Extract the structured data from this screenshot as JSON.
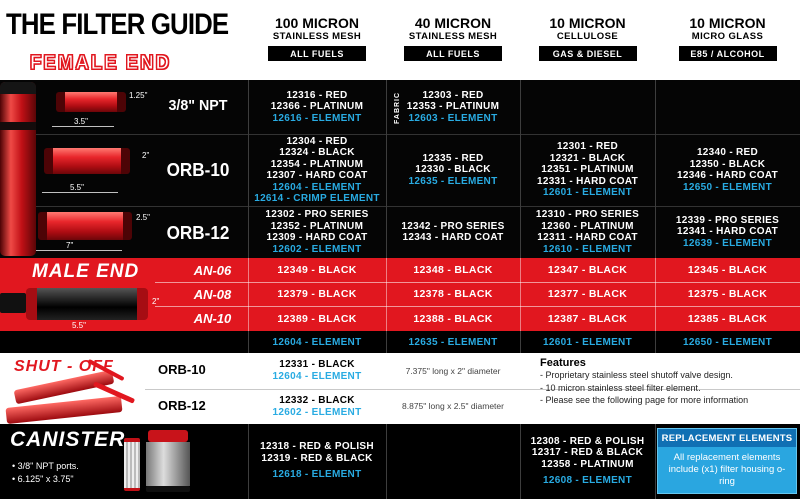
{
  "header": {
    "title": "THE FILTER GUIDE",
    "female_end_label": "FEMALE END",
    "columns": [
      {
        "line1": "100 MICRON",
        "line2": "STAINLESS MESH",
        "badge": "ALL FUELS"
      },
      {
        "line1": "40 MICRON",
        "line2": "STAINLESS MESH",
        "badge": "ALL FUELS"
      },
      {
        "line1": "10 MICRON",
        "line2": "CELLULOSE",
        "badge": "GAS & DIESEL"
      },
      {
        "line1": "10 MICRON",
        "line2": "MICRO GLASS",
        "badge": "E85 / ALCOHOL"
      }
    ]
  },
  "female_end": {
    "rows": [
      {
        "label": "3/8\" NPT",
        "dim_a": "1.25\"",
        "dim_b": "3.5\"",
        "cells": [
          {
            "lines": [
              {
                "t": "12316 - RED",
                "c": "w"
              },
              {
                "t": "12366 - PLATINUM",
                "c": "w"
              },
              {
                "t": "12616 - ELEMENT",
                "c": "b"
              }
            ]
          },
          {
            "tag": "FABRIC",
            "lines": [
              {
                "t": "12303 - RED",
                "c": "w"
              },
              {
                "t": "12353 - PLATINUM",
                "c": "w"
              },
              {
                "t": "12603 - ELEMENT",
                "c": "b"
              }
            ]
          },
          {
            "lines": []
          },
          {
            "lines": []
          }
        ]
      },
      {
        "label": "ORB-10",
        "dim_a": "2\"",
        "dim_b": "5.5\"",
        "cells": [
          {
            "lines": [
              {
                "t": "12304 - RED",
                "c": "w"
              },
              {
                "t": "12324 - BLACK",
                "c": "w"
              },
              {
                "t": "12354 - PLATINUM",
                "c": "w"
              },
              {
                "t": "12307 - HARD COAT",
                "c": "w"
              },
              {
                "t": "12604 - ELEMENT",
                "c": "b"
              },
              {
                "t": "12614 - CRIMP ELEMENT",
                "c": "b"
              }
            ]
          },
          {
            "lines": [
              {
                "t": "12335 - RED",
                "c": "w"
              },
              {
                "t": "12330 - BLACK",
                "c": "w"
              },
              {
                "t": "12635 - ELEMENT",
                "c": "b"
              }
            ]
          },
          {
            "lines": [
              {
                "t": "12301 - RED",
                "c": "w"
              },
              {
                "t": "12321 - BLACK",
                "c": "w"
              },
              {
                "t": "12351 - PLATINUM",
                "c": "w"
              },
              {
                "t": "12331 - HARD COAT",
                "c": "w"
              },
              {
                "t": "12601 - ELEMENT",
                "c": "b"
              }
            ]
          },
          {
            "lines": [
              {
                "t": "12340 - RED",
                "c": "w"
              },
              {
                "t": "12350 - BLACK",
                "c": "w"
              },
              {
                "t": "12346 - HARD COAT",
                "c": "w"
              },
              {
                "t": "12650 - ELEMENT",
                "c": "b"
              }
            ]
          }
        ]
      },
      {
        "label": "ORB-12",
        "dim_a": "2.5\"",
        "dim_b": "7\"",
        "cells": [
          {
            "lines": [
              {
                "t": "12302 - PRO SERIES",
                "c": "w"
              },
              {
                "t": "12352 - PLATINUM",
                "c": "w"
              },
              {
                "t": "12309 - HARD COAT",
                "c": "w"
              },
              {
                "t": "12602 - ELEMENT",
                "c": "b"
              }
            ]
          },
          {
            "lines": [
              {
                "t": "12342 - PRO SERIES",
                "c": "w"
              },
              {
                "t": "12343 - HARD COAT",
                "c": "w"
              }
            ]
          },
          {
            "lines": [
              {
                "t": "12310 - PRO SERIES",
                "c": "w"
              },
              {
                "t": "12360 - PLATINUM",
                "c": "w"
              },
              {
                "t": "12311 - HARD COAT",
                "c": "w"
              },
              {
                "t": "12610 - ELEMENT",
                "c": "b"
              }
            ]
          },
          {
            "lines": [
              {
                "t": "12339 - PRO SERIES",
                "c": "w"
              },
              {
                "t": "12341 - HARD COAT",
                "c": "w"
              },
              {
                "t": "12639 - ELEMENT",
                "c": "b"
              }
            ]
          }
        ]
      }
    ]
  },
  "male_end": {
    "label": "MALE END",
    "dim_a": "2\"",
    "dim_b": "5.5\"",
    "rows": [
      {
        "label": "AN-06",
        "cells": [
          "12349 - BLACK",
          "12348 - BLACK",
          "12347 - BLACK",
          "12345 - BLACK"
        ]
      },
      {
        "label": "AN-08",
        "cells": [
          "12379 - BLACK",
          "12378 - BLACK",
          "12377 - BLACK",
          "12375 - BLACK"
        ]
      },
      {
        "label": "AN-10",
        "cells": [
          "12389 - BLACK",
          "12388 - BLACK",
          "12387 - BLACK",
          "12385 - BLACK"
        ]
      }
    ],
    "elements": [
      "12604 - ELEMENT",
      "12635 - ELEMENT",
      "12601 - ELEMENT",
      "12650 - ELEMENT"
    ]
  },
  "shut_off": {
    "label": "SHUT - OFF",
    "rows": [
      {
        "label": "ORB-10",
        "lines": [
          {
            "t": "12331 - BLACK",
            "c": "k"
          },
          {
            "t": "12604 - ELEMENT",
            "c": "b"
          }
        ],
        "note": "7.375\" long x 2\" diameter"
      },
      {
        "label": "ORB-12",
        "lines": [
          {
            "t": "12332 - BLACK",
            "c": "k"
          },
          {
            "t": "12602 - ELEMENT",
            "c": "b"
          }
        ],
        "note": "8.875\" long x 2.5\" diameter"
      }
    ],
    "features": {
      "title": "Features",
      "items": [
        "- Proprietary stainless steel shutoff valve design.",
        "- 10 micron stainless steel filter element.",
        "- Please see the following page for more information"
      ]
    }
  },
  "canister": {
    "label": "CANISTER",
    "bullets": [
      "• 3/8\" NPT ports.",
      "• 6.125\" x 3.75\""
    ],
    "cells": [
      {
        "lines": [
          {
            "t": "12318 - RED & POLISH",
            "c": "w"
          },
          {
            "t": "12319 - RED & BLACK",
            "c": "w"
          },
          {
            "t": "12618 - ELEMENT",
            "c": "b"
          }
        ]
      },
      {
        "lines": []
      },
      {
        "lines": [
          {
            "t": "12308 - RED & POLISH",
            "c": "w"
          },
          {
            "t": "12317 - RED & BLACK",
            "c": "w"
          },
          {
            "t": "12358 - PLATINUM",
            "c": "w"
          },
          {
            "t": "12608 - ELEMENT",
            "c": "b"
          }
        ]
      },
      {
        "lines": []
      }
    ],
    "replacement": {
      "title": "REPLACEMENT ELEMENTS",
      "body": "All replacement elements include (x1) filter housing o-ring"
    }
  },
  "colors": {
    "red": "#e1171f",
    "element_blue": "#29abe2",
    "box_header_blue": "#1070b4",
    "box_body_blue": "#2aa6e0"
  }
}
